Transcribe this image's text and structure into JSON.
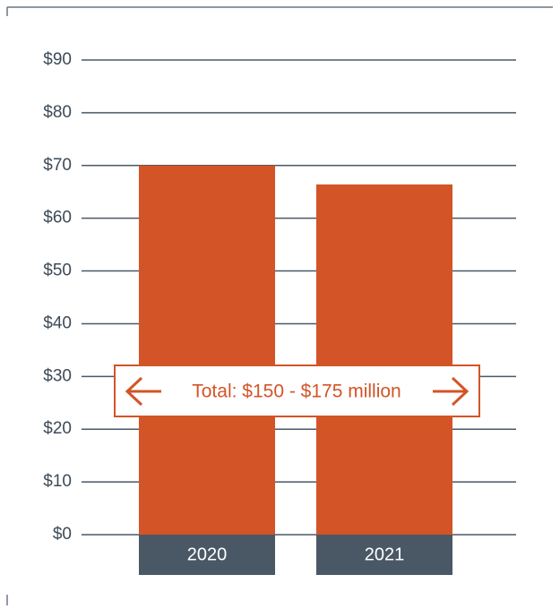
{
  "chart_data": {
    "type": "bar",
    "categories": [
      "2020",
      "2021"
    ],
    "values": [
      70,
      66.4
    ],
    "color": "#d35427",
    "category_box_color": "#4a5866",
    "ylim": [
      0,
      90
    ],
    "yticks": [
      {
        "value": 0,
        "label": "$0"
      },
      {
        "value": 10,
        "label": "$10"
      },
      {
        "value": 20,
        "label": "$20"
      },
      {
        "value": 30,
        "label": "$30"
      },
      {
        "value": 40,
        "label": "$40"
      },
      {
        "value": 50,
        "label": "$50"
      },
      {
        "value": 60,
        "label": "$60"
      },
      {
        "value": 70,
        "label": "$70"
      },
      {
        "value": 80,
        "label": "$80"
      },
      {
        "value": 90,
        "label": "$90"
      }
    ],
    "grid": true,
    "annotation": "Total: $150 - $175 million"
  }
}
